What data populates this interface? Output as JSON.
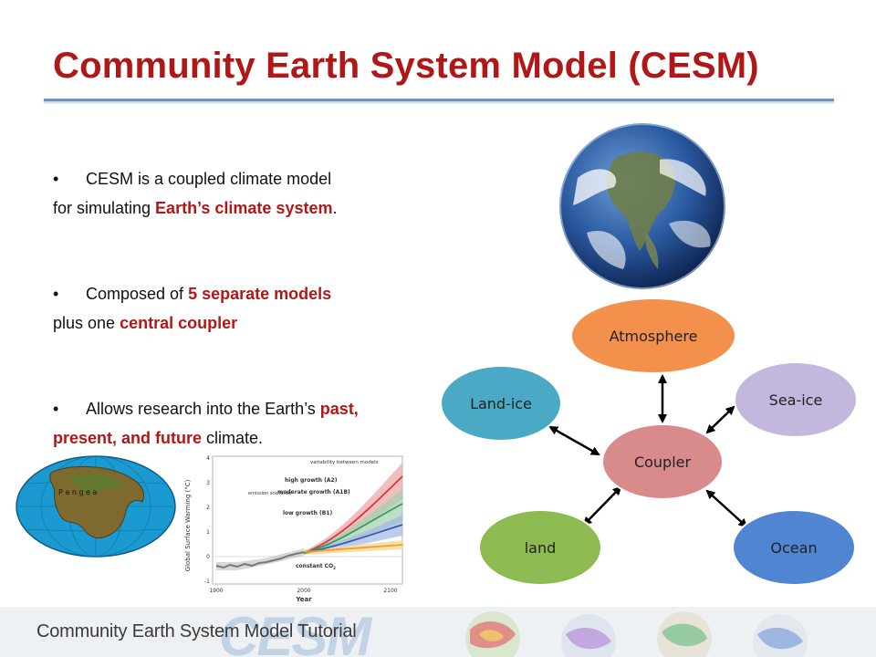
{
  "slide": {
    "title": "Community Earth System Model (CESM)",
    "bullets": [
      {
        "line1": "CESM is a coupled climate model",
        "line2_a": "for simulating ",
        "line2_em": "Earth’s climate system",
        "line2_b": "."
      },
      {
        "line1_a": "Composed of ",
        "line1_em": "5 separate models",
        "line2_a": "plus one ",
        "line2_em": "central coupler"
      },
      {
        "line1_a": "Allows research into the Earth’s ",
        "line1_em": "past,",
        "line2_em": "present, and future",
        "line2_b": " climate."
      }
    ],
    "bullet_glyph": "•"
  },
  "diagram": {
    "nodes": {
      "atmosphere": "Atmosphere",
      "landice": "Land-ice",
      "seaice": "Sea-ice",
      "coupler": "Coupler",
      "land": "land",
      "ocean": "Ocean"
    },
    "colors": {
      "atmosphere": "#f3904b",
      "landice": "#4aaac6",
      "seaice": "#c3b7de",
      "coupler": "#d98a8a",
      "land": "#8dba51",
      "ocean": "#4f85d1"
    }
  },
  "warming_chart": {
    "ylabel": "Global Surface Warming (°C)",
    "xlabel": "Year",
    "yticks": [
      "4",
      "3",
      "2",
      "1",
      "0",
      "-1"
    ],
    "xticks": [
      "1900",
      "2000",
      "2100"
    ],
    "note": "variability between models",
    "emission_label": "emission scenarios",
    "series": [
      {
        "name": "high growth (A2)",
        "color": "#d9383a"
      },
      {
        "name": "moderate growth (A1B)",
        "color": "#3a9a5a"
      },
      {
        "name": "low growth (B1)",
        "color": "#2f5db0"
      },
      {
        "name": "constant CO",
        "sub": "2",
        "color": "#f0a020"
      }
    ]
  },
  "pangaea": {
    "label": "P a n g e a"
  },
  "footer": {
    "text": "Community Earth System Model Tutorial",
    "logo": "CESM"
  }
}
